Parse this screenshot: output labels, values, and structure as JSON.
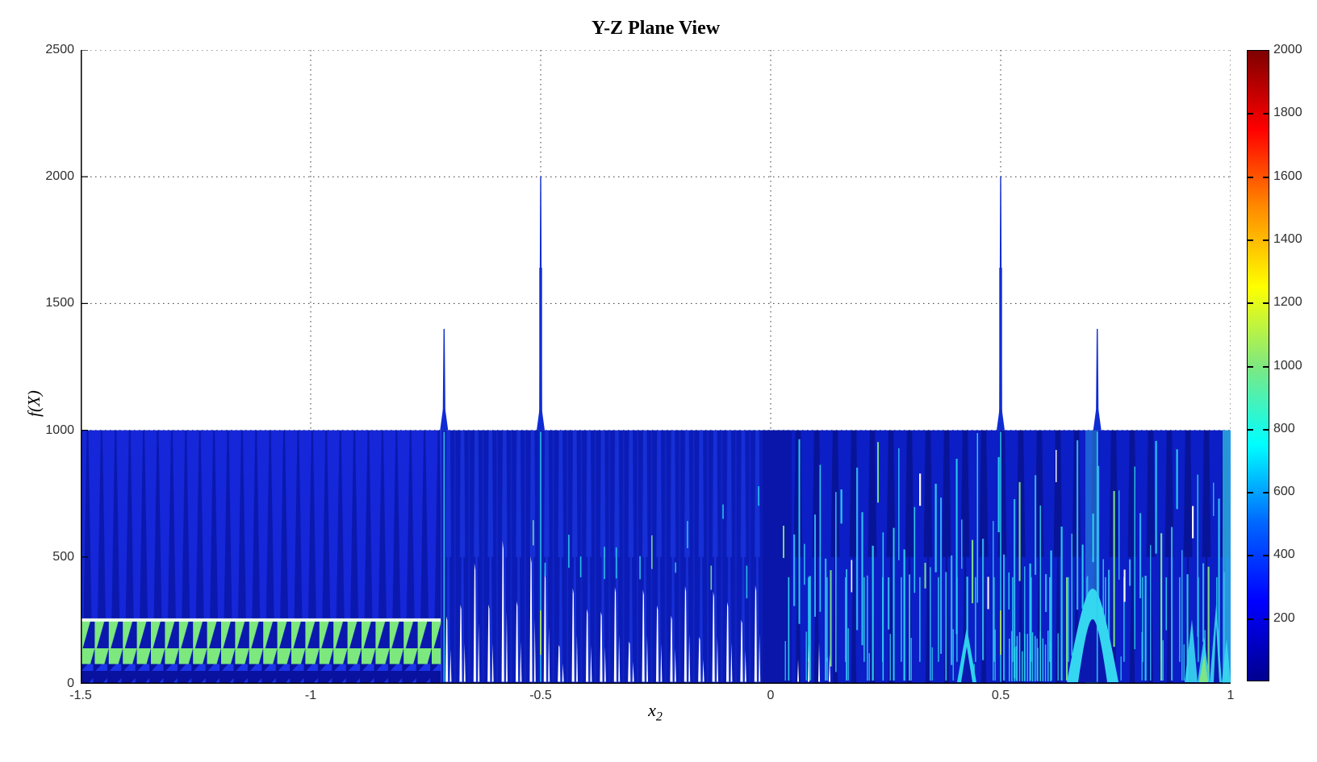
{
  "chart_data": {
    "type": "area",
    "title": "Y-Z Plane View",
    "xlabel_base": "x",
    "xlabel_sub": "2",
    "ylabel": "f(X)",
    "xlim": [
      -1.5,
      1
    ],
    "ylim": [
      0,
      2500
    ],
    "xticks": [
      "-1.5",
      "-1",
      "-0.5",
      "0",
      "0.5",
      "1"
    ],
    "xtick_values": [
      -1.5,
      -1,
      -0.5,
      0,
      0.5,
      1
    ],
    "yticks": [
      "0",
      "500",
      "1000",
      "1500",
      "2000",
      "2500"
    ],
    "ytick_values": [
      0,
      500,
      1000,
      1500,
      2000,
      2500
    ],
    "grid": "dotted",
    "dense_band": {
      "from": 0,
      "to": 1000,
      "description": "overlapping function slices fill f(X)=0 to 1000 for every x2 from -1.5 to 1"
    },
    "spikes": [
      {
        "x2": -0.71,
        "f": 1400
      },
      {
        "x2": -0.5,
        "f": 2000
      },
      {
        "x2": 0.5,
        "f": 2000
      },
      {
        "x2": 0.71,
        "f": 1400
      }
    ],
    "regions": [
      {
        "x2_from": -1.5,
        "x2_to": -0.72,
        "style": "periodic blue wedge stripes above a green sawtooth band (f about 70-250) and a dark sawtooth base band (f about 0-70)"
      },
      {
        "x2_from": -0.72,
        "x2_to": 0,
        "style": "dense dark-blue curtains with white comb gaps near f=0"
      },
      {
        "x2_from": 0,
        "x2_to": 1,
        "style": "dense dark-blue curtains with cyan and green streaks, bright tents and flames near f=0 toward x2=1"
      }
    ],
    "colorbar": {
      "min": 0,
      "max": 2000,
      "colormap": "jet",
      "ticks": [
        "200",
        "400",
        "600",
        "800",
        "1000",
        "1200",
        "1400",
        "1600",
        "1800",
        "2000"
      ],
      "tick_values": [
        200,
        400,
        600,
        800,
        1000,
        1200,
        1400,
        1600,
        1800,
        2000
      ]
    },
    "colors": {
      "region_a_blue": "#1527d8",
      "wedge_navy": "#0a18ae",
      "green": "#7ce87e",
      "deep_navy": "#08129e",
      "base_tri_blue": "#1b34e8",
      "curtain_navy": "#0b1cb6",
      "curtain_blue": "#1732dc",
      "right_blue": "#0c1ec6",
      "right_navy": "#081498",
      "cyan": "#2bd0ee",
      "green_dash": "#7fe488",
      "separator": "#eafbea",
      "spike_blue": "#0f2cd4",
      "grid_color": "#333333"
    }
  }
}
